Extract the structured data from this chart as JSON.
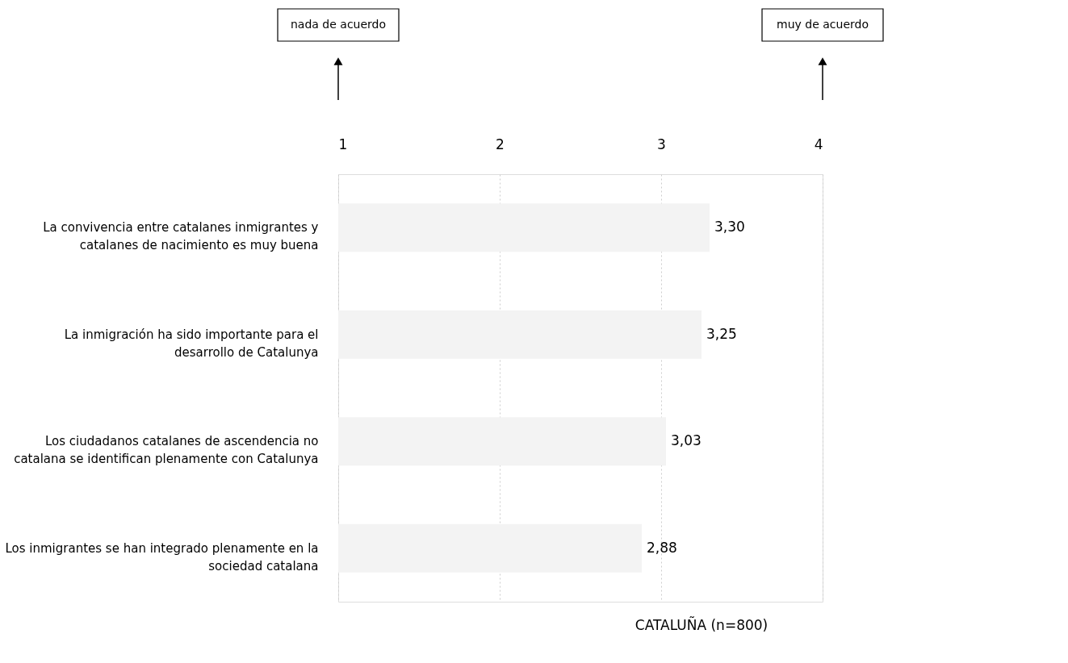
{
  "chart_data": {
    "type": "bar",
    "orientation": "horizontal",
    "xlabel": "CATALUÑA (n=800)",
    "categories": [
      "La convivencia entre catalanes inmigrantes y catalanes de nacimiento es muy buena",
      "La inmigración ha sido importante para el desarrollo de Catalunya",
      "Los ciudadanos catalanes de ascendencia no catalana se identifican plenamente con Catalunya",
      "Los inmigrantes se han integrado plenamente en la sociedad catalana"
    ],
    "values": [
      3.3,
      3.25,
      3.03,
      2.88
    ],
    "value_labels": [
      "3,30",
      "3,25",
      "3,03",
      "2,88"
    ],
    "color": "#f3f3f3",
    "xlim": [
      1,
      4
    ],
    "xticks": [
      1,
      2,
      3,
      4
    ],
    "grid": "x",
    "annotations": [
      "nada de acuerdo",
      "muy de acuerdo"
    ]
  }
}
